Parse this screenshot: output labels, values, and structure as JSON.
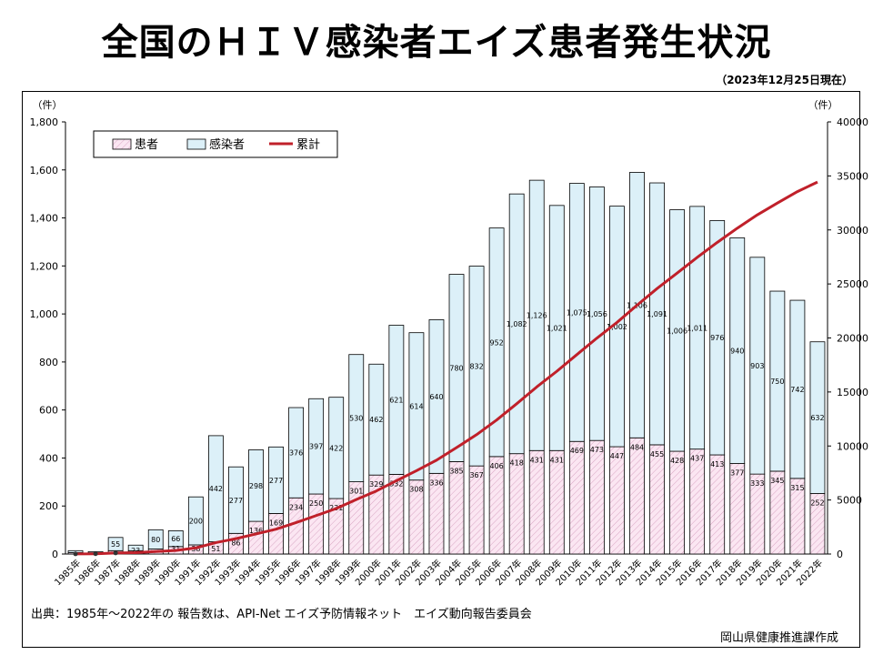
{
  "title": "全国のＨＩＶ感染者エイズ患者発生状況",
  "date_note": "（2023年12月25日現在）",
  "source": "出典：1985年～2022年の 報告数は、API-Net エイズ予防情報ネット　エイズ動向報告委員会",
  "credit": "岡山県健康推進課作成",
  "colors": {
    "patients": "#f9e0ef",
    "patients_hatch": "#d9a6c4",
    "infected": "#dcf0f8",
    "cumulative": "#c0202a"
  },
  "chart_data": {
    "type": "bar",
    "stacked": true,
    "categories": [
      "1985年",
      "1986年",
      "1987年",
      "1988年",
      "1989年",
      "1990年",
      "1991年",
      "1992年",
      "1993年",
      "1994年",
      "1995年",
      "1996年",
      "1997年",
      "1998年",
      "1999年",
      "2000年",
      "2001年",
      "2002年",
      "2003年",
      "2004年",
      "2005年",
      "2006年",
      "2007年",
      "2008年",
      "2009年",
      "2010年",
      "2011年",
      "2012年",
      "2013年",
      "2014年",
      "2015年",
      "2016年",
      "2017年",
      "2018年",
      "2019年",
      "2020年",
      "2021年",
      "2022年"
    ],
    "series": [
      {
        "name": "患者",
        "values": [
          6,
          5,
          14,
          14,
          21,
          31,
          38,
          51,
          86,
          136,
          169,
          234,
          250,
          231,
          301,
          329,
          332,
          308,
          336,
          385,
          367,
          406,
          418,
          431,
          431,
          469,
          473,
          447,
          484,
          455,
          428,
          437,
          413,
          377,
          333,
          345,
          315,
          252
        ],
        "labels": [
          "",
          "",
          "",
          "",
          "",
          "31",
          "38",
          "51",
          "86",
          "136",
          "169",
          "234",
          "250",
          "231",
          "301",
          "329",
          "332",
          "308",
          "336",
          "385",
          "367",
          "406",
          "418",
          "431",
          "431",
          "469",
          "473",
          "447",
          "484",
          "455",
          "428",
          "437",
          "413",
          "377",
          "333",
          "345",
          "315",
          "252"
        ]
      },
      {
        "name": "感染者",
        "values": [
          8,
          5,
          55,
          23,
          80,
          66,
          200,
          442,
          277,
          298,
          277,
          376,
          397,
          422,
          530,
          462,
          621,
          614,
          640,
          780,
          832,
          952,
          1082,
          1126,
          1021,
          1075,
          1056,
          1002,
          1106,
          1091,
          1006,
          1011,
          976,
          940,
          903,
          750,
          742,
          632
        ],
        "labels": [
          "",
          "",
          "55",
          "23",
          "80",
          "66",
          "200",
          "442",
          "277",
          "298",
          "277",
          "376",
          "397",
          "422",
          "530",
          "462",
          "621",
          "614",
          "640",
          "780",
          "832",
          "952",
          "1,082",
          "1,126",
          "1,021",
          "1,075",
          "1,056",
          "1,002",
          "1,106",
          "1,091",
          "1,006",
          "1,011",
          "976",
          "940",
          "903",
          "750",
          "742",
          "632"
        ]
      },
      {
        "name": "累計",
        "axis": "right",
        "type": "line",
        "values": [
          14,
          24,
          93,
          130,
          231,
          328,
          566,
          1059,
          1422,
          1856,
          2302,
          2912,
          3559,
          4212,
          5043,
          5834,
          6787,
          7709,
          8685,
          9850,
          11049,
          12407,
          13907,
          15464,
          16916,
          18460,
          19989,
          21438,
          23028,
          24574,
          26008,
          27456,
          28845,
          30162,
          31398,
          32493,
          33550,
          34434
        ]
      }
    ],
    "y_left": {
      "unit": "（件）",
      "ylim": [
        0,
        1800
      ],
      "ticks": [
        "0",
        "200",
        "400",
        "600",
        "800",
        "1,000",
        "1,200",
        "1,400",
        "1,600",
        "1,800"
      ]
    },
    "y_right": {
      "unit": "（件）",
      "ylim": [
        0,
        40000
      ],
      "ticks": [
        "0",
        "5000",
        "10000",
        "15000",
        "20000",
        "25000",
        "30000",
        "35000",
        "40000"
      ]
    },
    "grid": false,
    "legend": {
      "position": "top-left",
      "items": [
        "患者",
        "感染者",
        "累計"
      ]
    }
  }
}
